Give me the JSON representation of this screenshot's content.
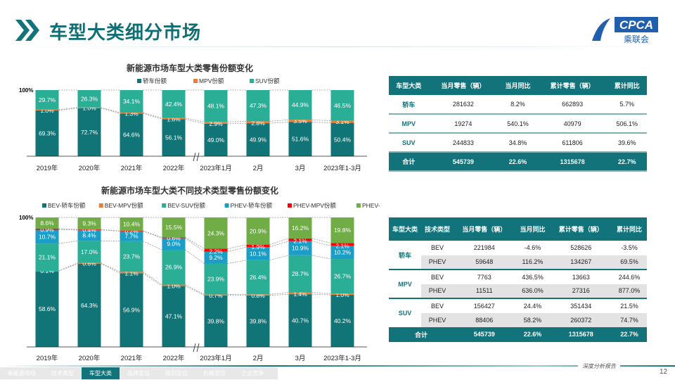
{
  "header": {
    "title": "车型大类细分市场",
    "logo_text": "CPCA",
    "logo_sub": "乘联会"
  },
  "colors": {
    "accent": "#12737a",
    "sedan": "#117577",
    "mpv": "#ed7d31",
    "suv": "#2aae96",
    "phev_sedan": "#1a9ec8",
    "phev_mpv": "#ff0000",
    "phev_suv": "#70ad47"
  },
  "chart_data": [
    {
      "type": "bar",
      "stacked": true,
      "title": "新能源市场车型大类零售份额变化",
      "ytick": "100%",
      "ylim": [
        0,
        100
      ],
      "legend": "top",
      "axis_break_after": "2022年",
      "categories": [
        "2019年",
        "2020年",
        "2021年",
        "2022年",
        "2023年1月",
        "2月",
        "3月",
        "2023年1-3月"
      ],
      "series": [
        {
          "name": "轿车份额",
          "color": "#117577",
          "values": [
            69.3,
            72.7,
            64.6,
            56.1,
            49.0,
            49.9,
            51.6,
            50.4
          ]
        },
        {
          "name": "MPV份额",
          "color": "#ed7d31",
          "values": [
            1.0,
            1.0,
            1.3,
            1.6,
            2.9,
            2.8,
            3.5,
            3.1
          ]
        },
        {
          "name": "SUV份额",
          "color": "#2aae96",
          "values": [
            29.7,
            26.3,
            34.1,
            42.4,
            48.1,
            47.3,
            44.9,
            46.5
          ]
        }
      ]
    },
    {
      "type": "bar",
      "stacked": true,
      "title": "新能源市场车型大类不同技术类型零售份额变化",
      "ytick": "100%",
      "ylim": [
        0,
        100
      ],
      "legend": "top",
      "axis_break_after": "2022年",
      "categories": [
        "2019年",
        "2020年",
        "2021年",
        "2022年",
        "2023年1月",
        "2月",
        "3月",
        "2023年1-3月"
      ],
      "series": [
        {
          "name": "BEV-轿车份额",
          "color": "#117577",
          "values": [
            58.6,
            64.3,
            56.9,
            47.1,
            39.8,
            39.8,
            40.7,
            40.2
          ]
        },
        {
          "name": "BEV-MPV份额",
          "color": "#ed7d31",
          "values": [
            0.1,
            0.6,
            1.1,
            1.0,
            0.7,
            0.8,
            1.4,
            1.0
          ]
        },
        {
          "name": "BEV-SUV份额",
          "color": "#2aae96",
          "values": [
            21.1,
            17.0,
            23.7,
            26.9,
            23.9,
            26.4,
            28.7,
            26.7
          ]
        },
        {
          "name": "PHEV-轿车份额",
          "color": "#1a9ec8",
          "values": [
            10.7,
            8.4,
            7.7,
            9.0,
            9.2,
            10.1,
            10.9,
            10.2
          ]
        },
        {
          "name": "PHEV-MPV份额",
          "color": "#ff0000",
          "values": [
            0.9,
            0.4,
            0.2,
            0.6,
            2.2,
            1.9,
            2.1,
            2.1
          ]
        },
        {
          "name": "PHEV-SUV份额",
          "color": "#70ad47",
          "values": [
            8.6,
            9.3,
            10.4,
            15.5,
            24.3,
            20.9,
            16.2,
            19.8
          ]
        }
      ]
    }
  ],
  "table1": {
    "headers": [
      "车型大类",
      "当月零售（辆）",
      "当月同比",
      "累计零售（辆）",
      "累计同比"
    ],
    "rows": [
      [
        "轿车",
        "281632",
        "8.2%",
        "662893",
        "5.7%"
      ],
      [
        "MPV",
        "19274",
        "540.1%",
        "40979",
        "506.1%"
      ],
      [
        "SUV",
        "244833",
        "34.8%",
        "611806",
        "39.6%"
      ]
    ],
    "total": [
      "合计",
      "545739",
      "22.6%",
      "1315678",
      "22.7%"
    ]
  },
  "table2": {
    "headers": [
      "车型大类",
      "技术类型",
      "当月零售（辆）",
      "当月同比",
      "累计零售（辆）",
      "累计同比"
    ],
    "groups": [
      {
        "cat": "轿车",
        "rows": [
          [
            "BEV",
            "221984",
            "-4.6%",
            "528626",
            "-3.5%"
          ],
          [
            "PHEV",
            "59648",
            "116.2%",
            "134267",
            "69.5%"
          ]
        ]
      },
      {
        "cat": "MPV",
        "rows": [
          [
            "BEV",
            "7763",
            "436.5%",
            "13663",
            "244.6%"
          ],
          [
            "PHEV",
            "11511",
            "636.0%",
            "27316",
            "877.0%"
          ]
        ]
      },
      {
        "cat": "SUV",
        "rows": [
          [
            "BEV",
            "156427",
            "24.4%",
            "351434",
            "21.5%"
          ],
          [
            "PHEV",
            "88406",
            "58.2%",
            "260372",
            "74.7%"
          ]
        ]
      }
    ],
    "total": [
      "合计",
      "545739",
      "22.6%",
      "1315678",
      "22.7%"
    ]
  },
  "footer": {
    "tabs": [
      "新能源市场",
      "技术类型",
      "车型大类",
      "品牌定位",
      "级别定位",
      "价格定位",
      "企业竞争"
    ],
    "active": 2,
    "report": "深度分析报告",
    "page": "12"
  }
}
